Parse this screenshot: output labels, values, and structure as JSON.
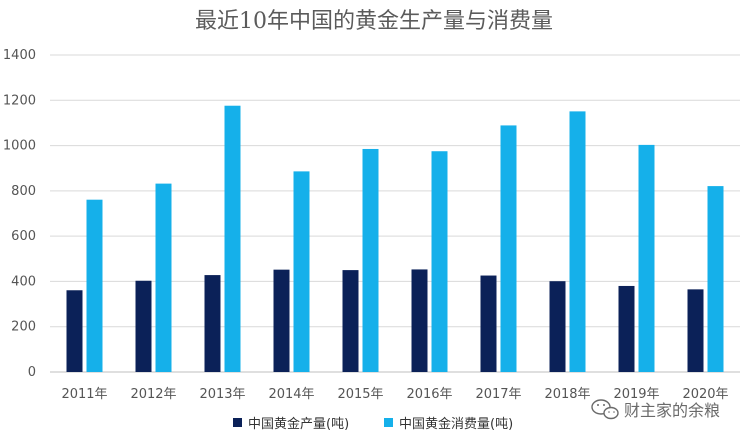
{
  "chart_data": {
    "type": "bar",
    "title": "最近10年中国的黄金生产量与消费量",
    "categories": [
      "2011年",
      "2012年",
      "2013年",
      "2014年",
      "2015年",
      "2016年",
      "2017年",
      "2018年",
      "2019年",
      "2020年"
    ],
    "series": [
      {
        "name": "中国黄金产量(吨)",
        "color": "#0b2158",
        "values": [
          361,
          403,
          428,
          452,
          450,
          453,
          426,
          401,
          380,
          365
        ]
      },
      {
        "name": "中国黄金消费量(吨)",
        "color": "#15b0ea",
        "values": [
          761,
          832,
          1176,
          886,
          985,
          975,
          1089,
          1151,
          1003,
          821
        ]
      }
    ],
    "ylim": [
      0,
      1400
    ],
    "yticks": [
      0,
      200,
      400,
      600,
      800,
      1000,
      1200,
      1400
    ],
    "grid": true,
    "legend_position": "bottom"
  },
  "watermark": {
    "icon": "wechat-icon",
    "text": "财主家的余粮"
  },
  "colors": {
    "grid": "#d9d9d9",
    "axis": "#bfbfbf"
  }
}
